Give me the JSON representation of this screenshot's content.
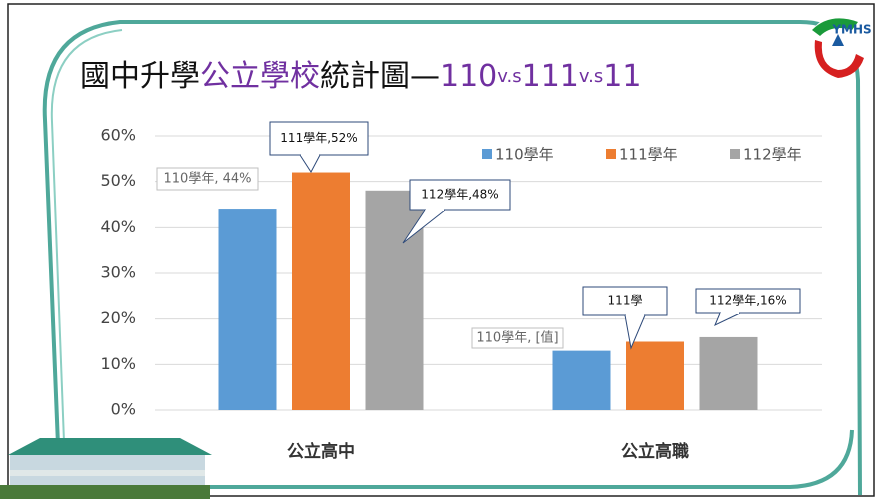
{
  "chart_data": {
    "type": "bar",
    "title": [
      "國中升學",
      "公立學校",
      "統計圖—",
      "110",
      "v.s",
      "111",
      "v.s",
      "11"
    ],
    "logo": "YMHS",
    "categories": [
      "公立高中",
      "公立高職"
    ],
    "series": [
      {
        "name": "110學年",
        "color": "#5b9bd5",
        "values": [
          44,
          13
        ]
      },
      {
        "name": "111學年",
        "color": "#ed7d31",
        "values": [
          52,
          15
        ]
      },
      {
        "name": "112學年",
        "color": "#a5a5a5",
        "values": [
          48,
          16
        ]
      }
    ],
    "annotations": [
      "110學年, 44%",
      "111學年,52%",
      "112學年,48%",
      "110學年, [值]",
      "111學",
      "112學年,16%"
    ],
    "ylim": [
      0,
      60
    ],
    "yticks": [
      {
        "value": 0,
        "label": "0%"
      },
      {
        "value": 10,
        "label": "10%"
      },
      {
        "value": 20,
        "label": "20%"
      },
      {
        "value": 30,
        "label": "30%"
      },
      {
        "value": 40,
        "label": "40%"
      },
      {
        "value": 50,
        "label": "50%"
      },
      {
        "value": 60,
        "label": "60%"
      }
    ],
    "grid": true,
    "legend": "top-right"
  }
}
